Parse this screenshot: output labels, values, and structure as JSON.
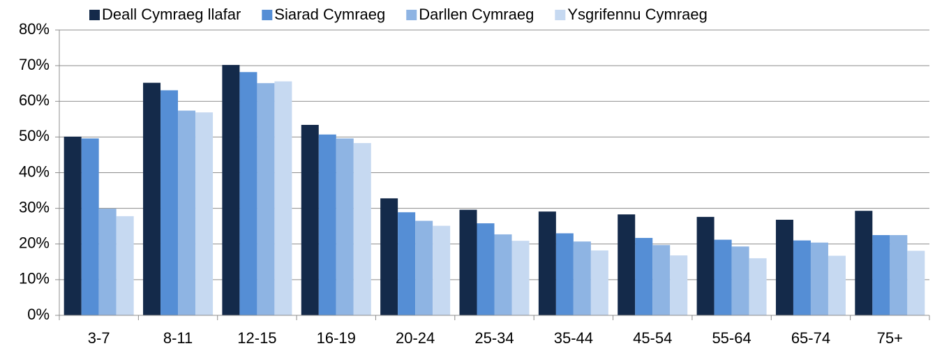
{
  "chart_data": {
    "type": "bar",
    "categories": [
      "3-7",
      "8-11",
      "12-15",
      "16-19",
      "20-24",
      "25-34",
      "35-44",
      "45-54",
      "55-64",
      "65-74",
      "75+"
    ],
    "series": [
      {
        "name": "Deall Cymraeg llafar",
        "color": "#142a4a",
        "values": [
          50.1,
          65.2,
          70.2,
          53.4,
          32.8,
          29.6,
          29.1,
          28.3,
          27.6,
          26.8,
          29.3
        ]
      },
      {
        "name": "Siarad Cymraeg",
        "color": "#558ed5",
        "values": [
          49.6,
          63.1,
          68.2,
          50.7,
          28.9,
          25.8,
          23.0,
          21.7,
          21.2,
          21.0,
          22.5
        ]
      },
      {
        "name": "Darllen Cymraeg",
        "color": "#8eb4e3",
        "values": [
          29.9,
          57.4,
          65.1,
          49.6,
          26.5,
          22.7,
          20.7,
          19.7,
          19.3,
          20.4,
          22.5
        ]
      },
      {
        "name": "Ysgrifennu Cymraeg",
        "color": "#c6d9f1",
        "values": [
          27.8,
          56.9,
          65.6,
          48.3,
          25.1,
          20.9,
          18.2,
          16.8,
          16.0,
          16.7,
          18.1
        ]
      }
    ],
    "ylim": [
      0,
      80
    ],
    "yticks": [
      {
        "value": 0,
        "label": "0%"
      },
      {
        "value": 10,
        "label": "10%"
      },
      {
        "value": 20,
        "label": "20%"
      },
      {
        "value": 30,
        "label": "30%"
      },
      {
        "value": 40,
        "label": "40%"
      },
      {
        "value": 50,
        "label": "50%"
      },
      {
        "value": 60,
        "label": "60%"
      },
      {
        "value": 70,
        "label": "70%"
      },
      {
        "value": 80,
        "label": "80%"
      }
    ],
    "grid": true,
    "legend": "top"
  }
}
